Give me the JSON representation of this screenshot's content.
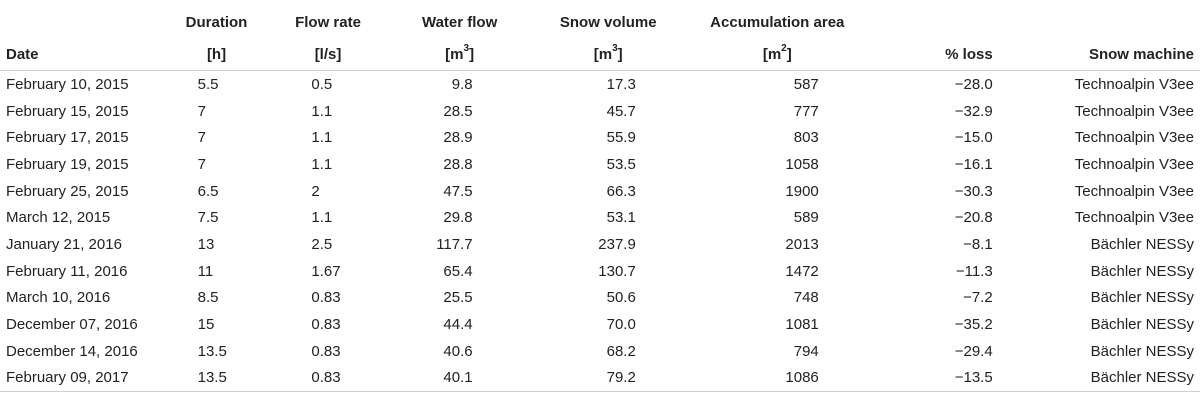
{
  "headers": {
    "date": "Date",
    "duration": "Duration",
    "duration_unit": "[h]",
    "flow_rate": "Flow rate",
    "flow_rate_unit": "[l/s]",
    "water_flow": "Water flow",
    "water_flow_unit_base": "[m",
    "water_flow_unit_exp": "3",
    "water_flow_unit_close": "]",
    "snow_volume": "Snow volume",
    "snow_volume_unit_base": "[m",
    "snow_volume_unit_exp": "3",
    "snow_volume_unit_close": "]",
    "accumulation_area": "Accumulation area",
    "accumulation_area_unit_base": "[m",
    "accumulation_area_unit_exp": "2",
    "accumulation_area_unit_close": "]",
    "loss": "% loss",
    "snow_machine": "Snow machine"
  },
  "rows": [
    {
      "date": "February 10, 2015",
      "duration": "5.5",
      "flow_rate": "0.5",
      "water_flow": "9.8",
      "snow_volume": "17.3",
      "accumulation_area": "587",
      "loss": "−28.0",
      "machine": "Technoalpin V3ee"
    },
    {
      "date": "February 15, 2015",
      "duration": "7",
      "flow_rate": "1.1",
      "water_flow": "28.5",
      "snow_volume": "45.7",
      "accumulation_area": "777",
      "loss": "−32.9",
      "machine": "Technoalpin V3ee"
    },
    {
      "date": "February 17, 2015",
      "duration": "7",
      "flow_rate": "1.1",
      "water_flow": "28.9",
      "snow_volume": "55.9",
      "accumulation_area": "803",
      "loss": "−15.0",
      "machine": "Technoalpin V3ee"
    },
    {
      "date": "February 19, 2015",
      "duration": "7",
      "flow_rate": "1.1",
      "water_flow": "28.8",
      "snow_volume": "53.5",
      "accumulation_area": "1058",
      "loss": "−16.1",
      "machine": "Technoalpin V3ee"
    },
    {
      "date": "February 25, 2015",
      "duration": "6.5",
      "flow_rate": "2",
      "water_flow": "47.5",
      "snow_volume": "66.3",
      "accumulation_area": "1900",
      "loss": "−30.3",
      "machine": "Technoalpin V3ee"
    },
    {
      "date": "March 12, 2015",
      "duration": "7.5",
      "flow_rate": "1.1",
      "water_flow": "29.8",
      "snow_volume": "53.1",
      "accumulation_area": "589",
      "loss": "−20.8",
      "machine": "Technoalpin V3ee"
    },
    {
      "date": "January 21, 2016",
      "duration": "13",
      "flow_rate": "2.5",
      "water_flow": "117.7",
      "snow_volume": "237.9",
      "accumulation_area": "2013",
      "loss": "−8.1",
      "machine": "Bächler NESSy"
    },
    {
      "date": "February 11, 2016",
      "duration": "11",
      "flow_rate": "1.67",
      "water_flow": "65.4",
      "snow_volume": "130.7",
      "accumulation_area": "1472",
      "loss": "−11.3",
      "machine": "Bächler NESSy"
    },
    {
      "date": "March 10, 2016",
      "duration": "8.5",
      "flow_rate": "0.83",
      "water_flow": "25.5",
      "snow_volume": "50.6",
      "accumulation_area": "748",
      "loss": "−7.2",
      "machine": "Bächler NESSy"
    },
    {
      "date": "December 07, 2016",
      "duration": "15",
      "flow_rate": "0.83",
      "water_flow": "44.4",
      "snow_volume": "70.0",
      "accumulation_area": "1081",
      "loss": "−35.2",
      "machine": "Bächler NESSy"
    },
    {
      "date": "December 14, 2016",
      "duration": "13.5",
      "flow_rate": "0.83",
      "water_flow": "40.6",
      "snow_volume": "68.2",
      "accumulation_area": "794",
      "loss": "−29.4",
      "machine": "Bächler NESSy"
    },
    {
      "date": "February 09, 2017",
      "duration": "13.5",
      "flow_rate": "0.83",
      "water_flow": "40.1",
      "snow_volume": "79.2",
      "accumulation_area": "1086",
      "loss": "−13.5",
      "machine": "Bächler NESSy"
    }
  ]
}
